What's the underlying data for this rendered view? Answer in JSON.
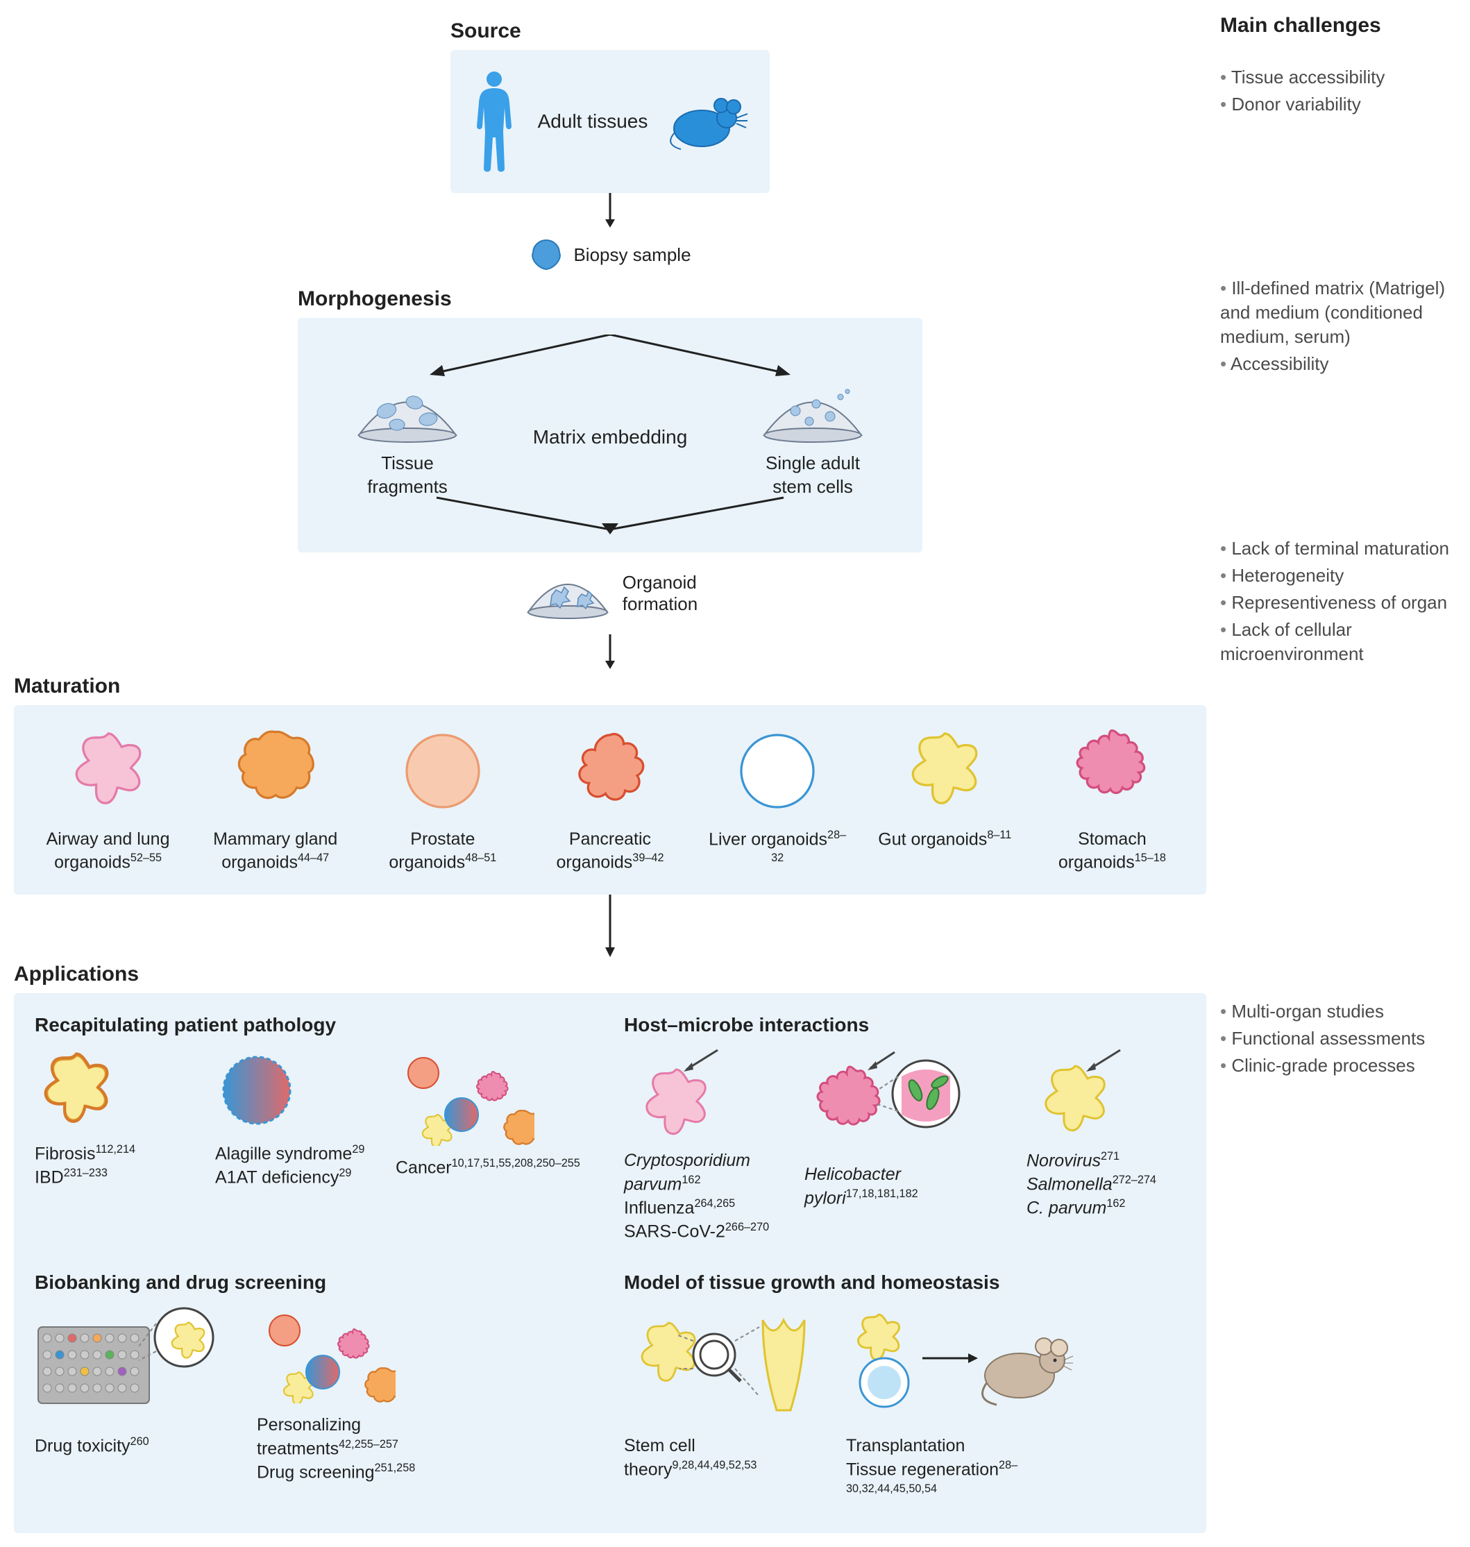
{
  "colors": {
    "panel_bg": "#e9f3f9",
    "text": "#212121",
    "bullet": "#808080",
    "human_blue": "#3aa0e8",
    "mouse_blue": "#2a8fd9",
    "biopsy_blue": "#4b9ddc",
    "dome_stroke": "#6b7a8f",
    "dome_fill": "#e5e9f0",
    "lung_pink": "#f6c4d6",
    "lung_stroke": "#e57aa8",
    "mammary_orange": "#f6a95a",
    "mammary_stroke": "#d67a2a",
    "prostate_peach": "#f8cbb0",
    "prostate_stroke": "#eb9b70",
    "pancreatic_salmon": "#f49f84",
    "pancreatic_stroke": "#d84e2f",
    "liver_blue": "#bfe3f6",
    "liver_stroke": "#3a95d4",
    "gut_yellow": "#f9ec9a",
    "gut_stroke": "#e0c330",
    "stomach_pink": "#ef8db0",
    "stomach_stroke": "#d24e7e",
    "red_gradient": "#e06a6a",
    "well_plate": "#b5b5b5",
    "bacteria_green": "#5ab45a",
    "mouse_body": "#cbb9a6"
  },
  "challenges_heading": "Main challenges",
  "stages": {
    "source": {
      "label": "Source",
      "item_label": "Adult tissues",
      "challenges": [
        "Tissue accessibility",
        "Donor variability"
      ]
    },
    "biopsy_label": "Biopsy sample",
    "morphogenesis": {
      "label": "Morphogenesis",
      "center_label": "Matrix embedding",
      "left_label": "Tissue\nfragments",
      "right_label": "Single adult\nstem cells",
      "challenges": [
        "Ill-defined matrix (Matrigel) and medium (conditioned medium, serum)",
        "Accessibility"
      ]
    },
    "organoid_formation_label": "Organoid\nformation",
    "maturation": {
      "label": "Maturation",
      "items": [
        {
          "name": "Airway and lung organoids",
          "refs": "52–55",
          "color": "#f6c4d6",
          "stroke": "#e57aa8",
          "shape": "star5"
        },
        {
          "name": "Mammary gland organoids",
          "refs": "44–47",
          "color": "#f6a95a",
          "stroke": "#d67a2a",
          "shape": "blobby"
        },
        {
          "name": "Prostate organoids",
          "refs": "48–51",
          "color": "#f8cbb0",
          "stroke": "#eb9b70",
          "shape": "circle"
        },
        {
          "name": "Pancreatic organoids",
          "refs": "39–42",
          "color": "#f49f84",
          "stroke": "#d84e2f",
          "shape": "lobed"
        },
        {
          "name": "Liver organoids",
          "refs": "28–32",
          "color": "#ffffff",
          "stroke": "#3a95d4",
          "shape": "ring"
        },
        {
          "name": "Gut organoids",
          "refs": "8–11",
          "color": "#f9ec9a",
          "stroke": "#e0c330",
          "shape": "star5"
        },
        {
          "name": "Stomach organoids",
          "refs": "15–18",
          "color": "#ef8db0",
          "stroke": "#d24e7e",
          "shape": "frilly"
        }
      ],
      "challenges": [
        "Lack of terminal maturation",
        "Heterogeneity",
        "Representiveness of organ",
        "Lack of cellular microenvironment"
      ]
    },
    "applications": {
      "label": "Applications",
      "challenges": [
        "Multi-organ studies",
        "Functional assessments",
        "Clinic-grade processes"
      ],
      "sections": {
        "pathology": {
          "title": "Recapitulating patient pathology",
          "items": [
            {
              "lines": [
                {
                  "t": "Fibrosis",
                  "refs": "112,214"
                },
                {
                  "t": "IBD",
                  "refs": "231–233"
                }
              ]
            },
            {
              "lines": [
                {
                  "t": "Alagille syndrome",
                  "refs": "29"
                },
                {
                  "t": "A1AT deficiency",
                  "refs": "29"
                }
              ]
            },
            {
              "lines": [
                {
                  "t": "Cancer",
                  "refs": "10,17,51,55,208,250–255"
                }
              ]
            }
          ]
        },
        "host_microbe": {
          "title": "Host–microbe interactions",
          "items": [
            {
              "lines": [
                {
                  "t": "Cryptosporidium parvum",
                  "refs": "162",
                  "italic": true
                },
                {
                  "t": "Influenza",
                  "refs": "264,265"
                },
                {
                  "t": "SARS-CoV-2",
                  "refs": "266–270"
                }
              ]
            },
            {
              "lines": [
                {
                  "t": "Helicobacter pylori",
                  "refs": "17,18,181,182",
                  "italic": true
                }
              ]
            },
            {
              "lines": [
                {
                  "t": "Norovirus",
                  "refs": "271",
                  "italic": true
                },
                {
                  "t": "Salmonella",
                  "refs": "272–274",
                  "italic": true
                },
                {
                  "t": "C. parvum",
                  "refs": "162",
                  "italic": true
                }
              ]
            }
          ]
        },
        "biobanking": {
          "title": "Biobanking and drug screening",
          "items": [
            {
              "lines": [
                {
                  "t": "Drug toxicity",
                  "refs": "260"
                }
              ]
            },
            {
              "lines": [
                {
                  "t": "Personalizing treatments",
                  "refs": "42,255–257"
                },
                {
                  "t": "Drug screening",
                  "refs": "251,258"
                }
              ]
            }
          ]
        },
        "model": {
          "title": "Model of tissue growth and homeostasis",
          "items": [
            {
              "lines": [
                {
                  "t": "Stem cell theory",
                  "refs": "9,28,44,49,52,53"
                }
              ]
            },
            {
              "lines": [
                {
                  "t": "Transplantation",
                  "refs": ""
                },
                {
                  "t": "Tissue regeneration",
                  "refs": "28–30,32,44,45,50,54"
                }
              ]
            }
          ]
        }
      }
    }
  }
}
